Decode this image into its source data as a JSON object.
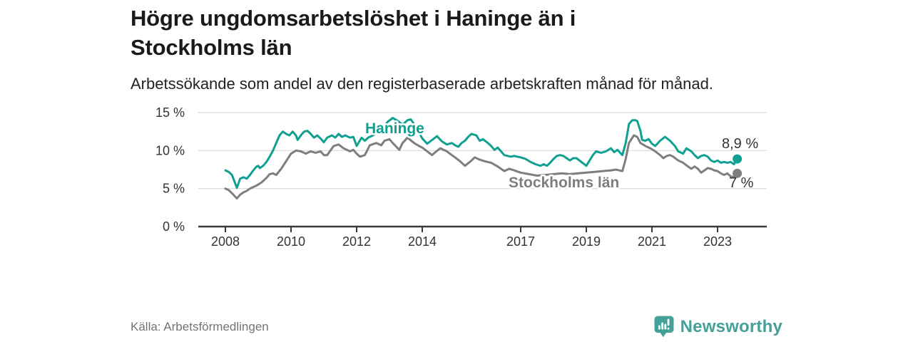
{
  "header": {
    "title": "Högre ungdomsarbetslöshet i Haninge än i Stockholms län",
    "subtitle": "Arbetssökande som andel av den registerbaserade arbetskraften månad för månad."
  },
  "chart_data": {
    "type": "line",
    "unit": "%",
    "x_axis": {
      "ticks": [
        2008,
        2010,
        2012,
        2014,
        2017,
        2019,
        2021,
        2023
      ],
      "tick_labels": [
        "2008",
        "2010",
        "2012",
        "2014",
        "2017",
        "2019",
        "2021",
        "2023"
      ],
      "range": [
        2007.2,
        2024.5
      ]
    },
    "y_axis": {
      "ticks": [
        0,
        5,
        10,
        15
      ],
      "tick_labels": [
        "0 %",
        "5 %",
        "10 %",
        "15 %"
      ],
      "range": [
        0,
        15
      ],
      "grid": true
    },
    "colors": {
      "grid": "#d9d9d9",
      "axis": "#3a3a3a",
      "tick_text": "#333333",
      "annotation_text": "#333333"
    },
    "series": [
      {
        "name": "Stockholms län",
        "color": "#7e7e7e",
        "end_value": 7.0,
        "end_label": "7 %",
        "points": [
          [
            2008.0,
            5.0
          ],
          [
            2008.1,
            4.8
          ],
          [
            2008.2,
            4.4
          ],
          [
            2008.35,
            3.7
          ],
          [
            2008.45,
            4.2
          ],
          [
            2008.55,
            4.5
          ],
          [
            2008.65,
            4.7
          ],
          [
            2008.75,
            5.0
          ],
          [
            2008.85,
            5.2
          ],
          [
            2008.95,
            5.4
          ],
          [
            2009.1,
            5.8
          ],
          [
            2009.25,
            6.4
          ],
          [
            2009.35,
            6.9
          ],
          [
            2009.45,
            7.0
          ],
          [
            2009.55,
            6.8
          ],
          [
            2009.7,
            7.6
          ],
          [
            2009.85,
            8.6
          ],
          [
            2010.0,
            9.6
          ],
          [
            2010.15,
            10.0
          ],
          [
            2010.3,
            9.9
          ],
          [
            2010.45,
            9.6
          ],
          [
            2010.6,
            9.9
          ],
          [
            2010.75,
            9.7
          ],
          [
            2010.9,
            9.9
          ],
          [
            2011.0,
            9.4
          ],
          [
            2011.1,
            9.4
          ],
          [
            2011.3,
            10.6
          ],
          [
            2011.45,
            10.8
          ],
          [
            2011.6,
            10.3
          ],
          [
            2011.8,
            9.9
          ],
          [
            2011.9,
            10.1
          ],
          [
            2012.0,
            9.6
          ],
          [
            2012.1,
            9.2
          ],
          [
            2012.25,
            9.4
          ],
          [
            2012.4,
            10.7
          ],
          [
            2012.6,
            11.0
          ],
          [
            2012.75,
            10.7
          ],
          [
            2012.85,
            11.3
          ],
          [
            2013.0,
            11.5
          ],
          [
            2013.1,
            11.0
          ],
          [
            2013.3,
            10.1
          ],
          [
            2013.4,
            11.0
          ],
          [
            2013.55,
            11.7
          ],
          [
            2013.75,
            11.0
          ],
          [
            2013.9,
            10.6
          ],
          [
            2014.0,
            10.4
          ],
          [
            2014.15,
            9.9
          ],
          [
            2014.3,
            9.4
          ],
          [
            2014.4,
            9.8
          ],
          [
            2014.55,
            10.3
          ],
          [
            2014.75,
            9.9
          ],
          [
            2014.9,
            9.4
          ],
          [
            2015.0,
            9.1
          ],
          [
            2015.15,
            8.6
          ],
          [
            2015.3,
            8.0
          ],
          [
            2015.45,
            8.5
          ],
          [
            2015.6,
            9.1
          ],
          [
            2015.75,
            8.8
          ],
          [
            2015.9,
            8.6
          ],
          [
            2016.1,
            8.4
          ],
          [
            2016.3,
            7.9
          ],
          [
            2016.5,
            7.3
          ],
          [
            2016.65,
            7.6
          ],
          [
            2016.8,
            7.4
          ],
          [
            2017.0,
            7.1
          ],
          [
            2017.25,
            6.9
          ],
          [
            2017.5,
            6.7
          ],
          [
            2017.75,
            6.8
          ],
          [
            2018.0,
            6.9
          ],
          [
            2018.25,
            7.0
          ],
          [
            2018.5,
            6.9
          ],
          [
            2018.75,
            7.0
          ],
          [
            2019.0,
            7.1
          ],
          [
            2019.25,
            7.2
          ],
          [
            2019.5,
            7.3
          ],
          [
            2019.75,
            7.4
          ],
          [
            2019.9,
            7.5
          ],
          [
            2020.0,
            7.4
          ],
          [
            2020.1,
            7.3
          ],
          [
            2020.2,
            8.9
          ],
          [
            2020.3,
            11.0
          ],
          [
            2020.45,
            12.0
          ],
          [
            2020.55,
            11.8
          ],
          [
            2020.65,
            11.0
          ],
          [
            2020.8,
            10.6
          ],
          [
            2020.95,
            10.3
          ],
          [
            2021.1,
            9.9
          ],
          [
            2021.25,
            9.4
          ],
          [
            2021.35,
            9.0
          ],
          [
            2021.45,
            9.3
          ],
          [
            2021.55,
            9.4
          ],
          [
            2021.65,
            9.2
          ],
          [
            2021.8,
            8.7
          ],
          [
            2021.95,
            8.4
          ],
          [
            2022.1,
            7.9
          ],
          [
            2022.2,
            7.6
          ],
          [
            2022.3,
            7.9
          ],
          [
            2022.4,
            7.6
          ],
          [
            2022.5,
            7.1
          ],
          [
            2022.6,
            7.4
          ],
          [
            2022.7,
            7.7
          ],
          [
            2022.8,
            7.6
          ],
          [
            2022.9,
            7.4
          ],
          [
            2023.0,
            7.3
          ],
          [
            2023.1,
            7.0
          ],
          [
            2023.2,
            6.8
          ],
          [
            2023.3,
            7.0
          ],
          [
            2023.4,
            6.6
          ],
          [
            2023.5,
            6.5
          ],
          [
            2023.6,
            7.0
          ]
        ]
      },
      {
        "name": "Haninge",
        "color": "#10a092",
        "end_value": 8.9,
        "end_label": "8,9 %",
        "points": [
          [
            2008.0,
            7.4
          ],
          [
            2008.1,
            7.2
          ],
          [
            2008.2,
            6.8
          ],
          [
            2008.35,
            5.1
          ],
          [
            2008.45,
            6.3
          ],
          [
            2008.55,
            6.5
          ],
          [
            2008.65,
            6.3
          ],
          [
            2008.75,
            6.8
          ],
          [
            2008.85,
            7.4
          ],
          [
            2008.95,
            7.9
          ],
          [
            2009.0,
            8.0
          ],
          [
            2009.05,
            7.7
          ],
          [
            2009.15,
            8.0
          ],
          [
            2009.25,
            8.5
          ],
          [
            2009.35,
            9.2
          ],
          [
            2009.45,
            10.0
          ],
          [
            2009.55,
            11.0
          ],
          [
            2009.65,
            12.0
          ],
          [
            2009.75,
            12.5
          ],
          [
            2009.85,
            12.2
          ],
          [
            2009.95,
            12.0
          ],
          [
            2010.05,
            12.5
          ],
          [
            2010.15,
            12.0
          ],
          [
            2010.2,
            11.4
          ],
          [
            2010.3,
            12.0
          ],
          [
            2010.4,
            12.5
          ],
          [
            2010.5,
            12.6
          ],
          [
            2010.6,
            12.2
          ],
          [
            2010.7,
            11.7
          ],
          [
            2010.8,
            12.0
          ],
          [
            2010.9,
            11.6
          ],
          [
            2011.0,
            11.1
          ],
          [
            2011.1,
            11.7
          ],
          [
            2011.25,
            12.0
          ],
          [
            2011.35,
            11.7
          ],
          [
            2011.45,
            12.2
          ],
          [
            2011.55,
            11.8
          ],
          [
            2011.65,
            12.0
          ],
          [
            2011.8,
            11.7
          ],
          [
            2011.9,
            11.8
          ],
          [
            2012.0,
            10.6
          ],
          [
            2012.15,
            11.7
          ],
          [
            2012.25,
            11.3
          ],
          [
            2012.35,
            11.7
          ],
          [
            2012.5,
            12.0
          ],
          [
            2012.65,
            12.4
          ],
          [
            2012.8,
            13.0
          ],
          [
            2012.95,
            13.8
          ],
          [
            2013.1,
            14.3
          ],
          [
            2013.25,
            13.9
          ],
          [
            2013.4,
            13.4
          ],
          [
            2013.55,
            14.0
          ],
          [
            2013.65,
            14.1
          ],
          [
            2013.8,
            13.2
          ],
          [
            2013.9,
            12.4
          ],
          [
            2014.0,
            11.6
          ],
          [
            2014.15,
            10.9
          ],
          [
            2014.3,
            11.4
          ],
          [
            2014.45,
            11.9
          ],
          [
            2014.6,
            11.2
          ],
          [
            2014.75,
            10.8
          ],
          [
            2014.9,
            11.0
          ],
          [
            2015.0,
            10.7
          ],
          [
            2015.1,
            10.5
          ],
          [
            2015.2,
            11.0
          ],
          [
            2015.3,
            11.3
          ],
          [
            2015.4,
            11.8
          ],
          [
            2015.5,
            12.2
          ],
          [
            2015.65,
            12.0
          ],
          [
            2015.75,
            11.3
          ],
          [
            2015.85,
            11.5
          ],
          [
            2016.0,
            11.0
          ],
          [
            2016.1,
            10.6
          ],
          [
            2016.2,
            10.1
          ],
          [
            2016.3,
            10.4
          ],
          [
            2016.4,
            9.9
          ],
          [
            2016.5,
            9.4
          ],
          [
            2016.6,
            9.3
          ],
          [
            2016.7,
            9.2
          ],
          [
            2016.8,
            9.3
          ],
          [
            2016.9,
            9.2
          ],
          [
            2017.0,
            9.1
          ],
          [
            2017.15,
            8.9
          ],
          [
            2017.3,
            8.5
          ],
          [
            2017.45,
            8.2
          ],
          [
            2017.6,
            8.0
          ],
          [
            2017.7,
            8.2
          ],
          [
            2017.8,
            8.0
          ],
          [
            2017.9,
            8.4
          ],
          [
            2018.0,
            8.9
          ],
          [
            2018.1,
            9.3
          ],
          [
            2018.2,
            9.4
          ],
          [
            2018.3,
            9.3
          ],
          [
            2018.4,
            9.0
          ],
          [
            2018.5,
            8.7
          ],
          [
            2018.6,
            9.0
          ],
          [
            2018.7,
            9.0
          ],
          [
            2018.85,
            8.5
          ],
          [
            2019.0,
            8.0
          ],
          [
            2019.1,
            8.7
          ],
          [
            2019.2,
            9.4
          ],
          [
            2019.3,
            9.9
          ],
          [
            2019.45,
            9.7
          ],
          [
            2019.6,
            9.9
          ],
          [
            2019.75,
            10.3
          ],
          [
            2019.85,
            9.8
          ],
          [
            2019.95,
            10.1
          ],
          [
            2020.1,
            9.4
          ],
          [
            2020.2,
            11.0
          ],
          [
            2020.3,
            13.5
          ],
          [
            2020.4,
            14.0
          ],
          [
            2020.5,
            14.0
          ],
          [
            2020.55,
            13.9
          ],
          [
            2020.65,
            12.6
          ],
          [
            2020.7,
            11.4
          ],
          [
            2020.8,
            11.3
          ],
          [
            2020.9,
            11.5
          ],
          [
            2021.0,
            10.9
          ],
          [
            2021.1,
            10.6
          ],
          [
            2021.25,
            11.3
          ],
          [
            2021.4,
            11.8
          ],
          [
            2021.55,
            11.3
          ],
          [
            2021.7,
            10.6
          ],
          [
            2021.8,
            9.9
          ],
          [
            2021.95,
            9.6
          ],
          [
            2022.05,
            10.3
          ],
          [
            2022.2,
            9.9
          ],
          [
            2022.3,
            9.4
          ],
          [
            2022.4,
            9.0
          ],
          [
            2022.5,
            9.3
          ],
          [
            2022.6,
            9.4
          ],
          [
            2022.7,
            9.2
          ],
          [
            2022.8,
            8.7
          ],
          [
            2022.9,
            8.5
          ],
          [
            2023.0,
            8.7
          ],
          [
            2023.1,
            8.4
          ],
          [
            2023.2,
            8.5
          ],
          [
            2023.3,
            8.4
          ],
          [
            2023.4,
            8.5
          ],
          [
            2023.5,
            8.2
          ],
          [
            2023.6,
            8.9
          ]
        ]
      }
    ],
    "legend_position": "inline-labels",
    "title": "Högre ungdomsarbetslöshet i Haninge än i Stockholms län",
    "xlabel": "",
    "ylabel": ""
  },
  "footer": {
    "source": "Källa: Arbetsförmedlingen",
    "brand": "Newsworthy",
    "brand_color": "#45a09a"
  }
}
